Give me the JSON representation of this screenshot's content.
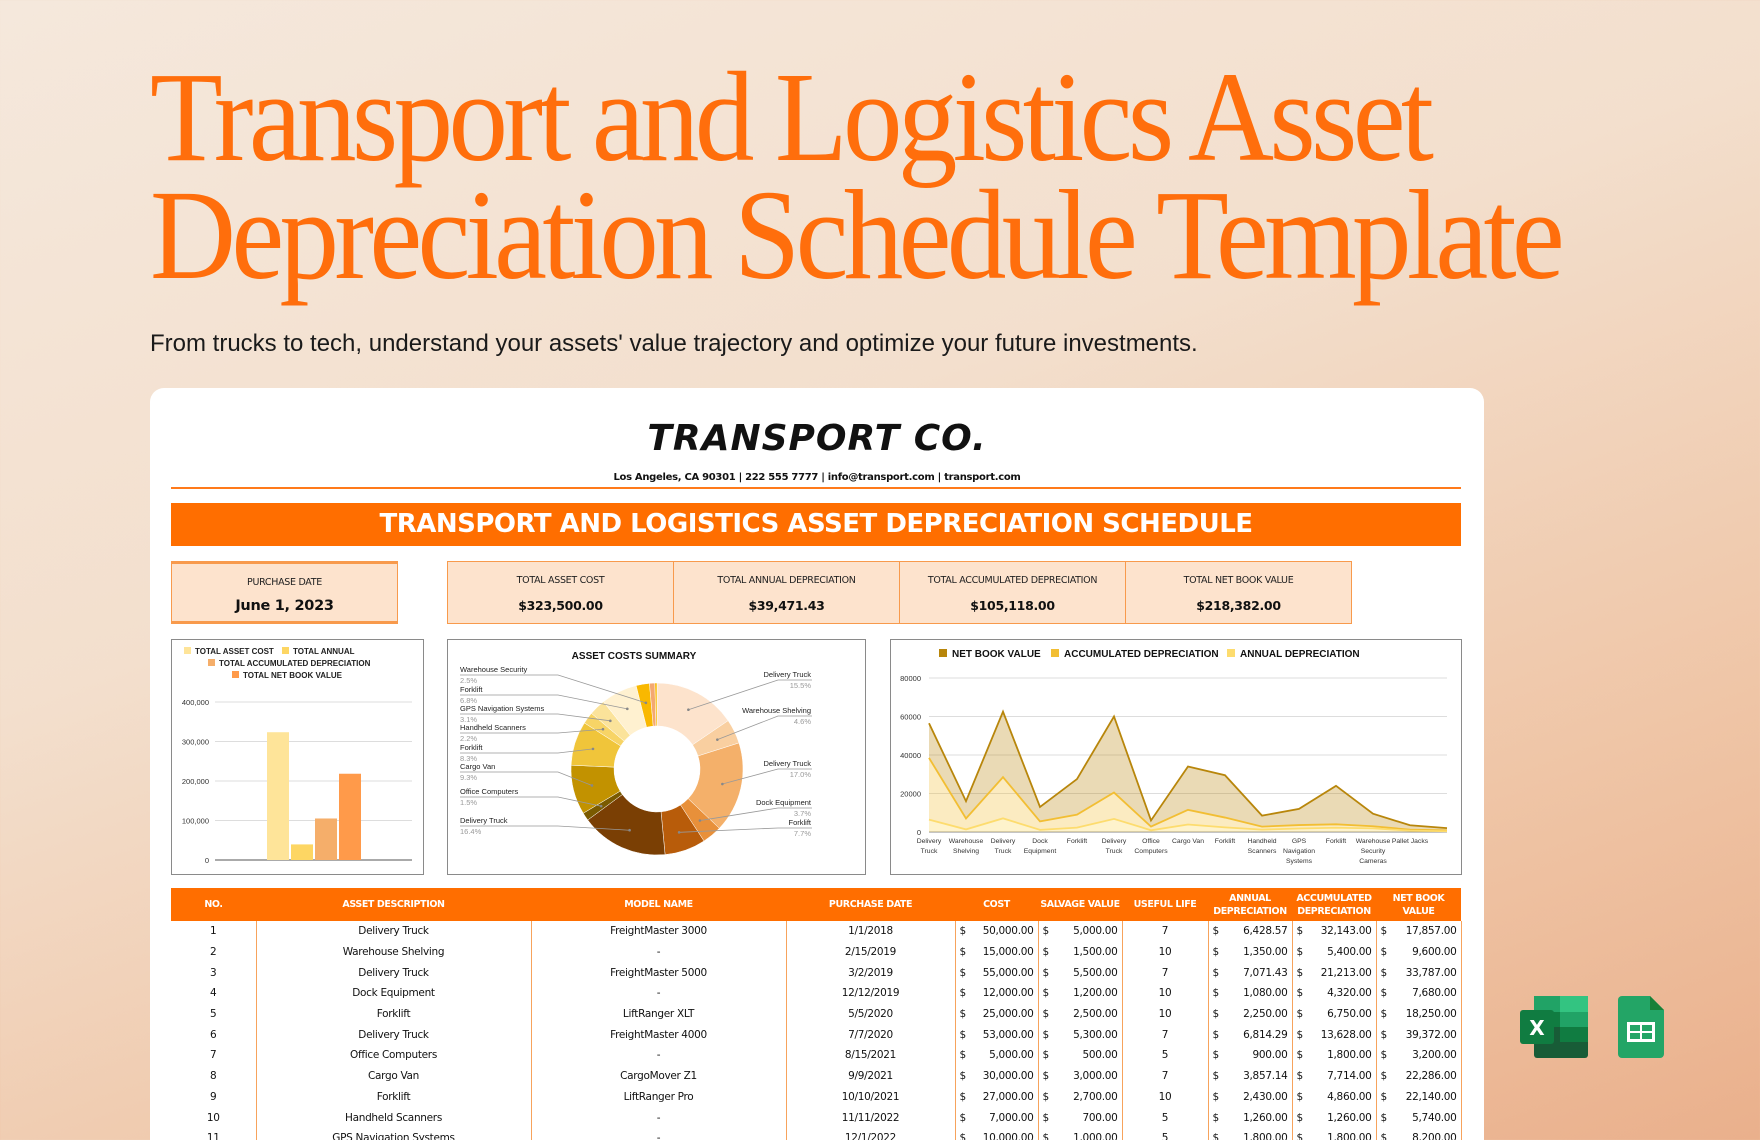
{
  "hero": {
    "title_line1": "Transport and Logistics Asset",
    "title_line2": "Depreciation Schedule Template",
    "subtitle": "From trucks to tech, understand your assets' value trajectory and optimize your future investments."
  },
  "document": {
    "company": "TRANSPORT CO.",
    "contact": "Los Angeles, CA 90301 | 222 555 7777 | info@transport.com | transport.com",
    "banner": "TRANSPORT AND LOGISTICS ASSET DEPRECIATION SCHEDULE",
    "kpis": [
      {
        "label": "PURCHASE DATE",
        "value": "June 1, 2023"
      },
      {
        "label": "TOTAL ASSET COST",
        "value": "$323,500.00"
      },
      {
        "label": "TOTAL ANNUAL DEPRECIATION",
        "value": "$39,471.43"
      },
      {
        "label": "TOTAL ACCUMULATED DEPRECIATION",
        "value": "$105,118.00"
      },
      {
        "label": "TOTAL NET BOOK VALUE",
        "value": "$218,382.00"
      }
    ],
    "table": {
      "headers": [
        "NO.",
        "ASSET DESCRIPTION",
        "MODEL NAME",
        "PURCHASE DATE",
        "COST",
        "SALVAGE VALUE",
        "USEFUL LIFE",
        "ANNUAL DEPRECIATION",
        "ACCUMULATED DEPRECIATION",
        "NET BOOK VALUE"
      ],
      "currency_symbol": "$",
      "rows": [
        [
          "1",
          "Delivery Truck",
          "FreightMaster 3000",
          "1/1/2018",
          "50,000.00",
          "5,000.00",
          "7",
          "6,428.57",
          "32,143.00",
          "17,857.00"
        ],
        [
          "2",
          "Warehouse Shelving",
          "-",
          "2/15/2019",
          "15,000.00",
          "1,500.00",
          "10",
          "1,350.00",
          "5,400.00",
          "9,600.00"
        ],
        [
          "3",
          "Delivery Truck",
          "FreightMaster 5000",
          "3/2/2019",
          "55,000.00",
          "5,500.00",
          "7",
          "7,071.43",
          "21,213.00",
          "33,787.00"
        ],
        [
          "4",
          "Dock Equipment",
          "-",
          "12/12/2019",
          "12,000.00",
          "1,200.00",
          "10",
          "1,080.00",
          "4,320.00",
          "7,680.00"
        ],
        [
          "5",
          "Forklift",
          "LiftRanger XLT",
          "5/5/2020",
          "25,000.00",
          "2,500.00",
          "10",
          "2,250.00",
          "6,750.00",
          "18,250.00"
        ],
        [
          "6",
          "Delivery Truck",
          "FreightMaster 4000",
          "7/7/2020",
          "53,000.00",
          "5,300.00",
          "7",
          "6,814.29",
          "13,628.00",
          "39,372.00"
        ],
        [
          "7",
          "Office Computers",
          "-",
          "8/15/2021",
          "5,000.00",
          "500.00",
          "5",
          "900.00",
          "1,800.00",
          "3,200.00"
        ],
        [
          "8",
          "Cargo Van",
          "CargoMover Z1",
          "9/9/2021",
          "30,000.00",
          "3,000.00",
          "7",
          "3,857.14",
          "7,714.00",
          "22,286.00"
        ],
        [
          "9",
          "Forklift",
          "LiftRanger Pro",
          "10/10/2021",
          "27,000.00",
          "2,700.00",
          "10",
          "2,430.00",
          "4,860.00",
          "22,140.00"
        ],
        [
          "10",
          "Handheld Scanners",
          "-",
          "11/11/2022",
          "7,000.00",
          "700.00",
          "5",
          "1,260.00",
          "1,260.00",
          "5,740.00"
        ],
        [
          "11",
          "GPS Navigation Systems",
          "-",
          "12/1/2022",
          "10,000.00",
          "1,000.00",
          "5",
          "1,800.00",
          "1,800.00",
          "8,200.00"
        ]
      ]
    }
  },
  "colors": {
    "accent": "#ff6e00",
    "kpi_fill": "#fde3cd",
    "kpi_border": "#f89a4c"
  },
  "app_icons": [
    {
      "name": "excel-icon",
      "label": "X"
    },
    {
      "name": "google-sheets-icon",
      "label": ""
    }
  ],
  "chart_data": [
    {
      "type": "bar",
      "title": "",
      "legend": [
        "TOTAL ASSET COST",
        "TOTAL ANNUAL",
        "TOTAL ACCUMULATED DEPRECIATION",
        "TOTAL NET BOOK VALUE"
      ],
      "legend_position": "top",
      "categories": [
        "TOTAL ASSET COST",
        "TOTAL ANNUAL",
        "TOTAL ACCUMULATED DEPRECIATION",
        "TOTAL NET BOOK VALUE"
      ],
      "values": [
        323500,
        39471.43,
        105118,
        218382
      ],
      "colors": [
        "#fee499",
        "#fdd663",
        "#f5ae6a",
        "#ff9a4a"
      ],
      "yticks": [
        "0",
        "100,000",
        "200,000",
        "300,000",
        "400,000"
      ],
      "ylim": [
        0,
        400000
      ],
      "grid": true
    },
    {
      "type": "pie",
      "title": "ASSET COSTS SUMMARY",
      "donut": true,
      "slices": [
        {
          "label": "Delivery Truck",
          "pct": 15.5,
          "color": "#fde3cc"
        },
        {
          "label": "Warehouse Shelving",
          "pct": 4.6,
          "color": "#f9cfa0"
        },
        {
          "label": "Delivery Truck",
          "pct": 17.0,
          "color": "#f4b06a"
        },
        {
          "label": "Dock Equipment",
          "pct": 3.7,
          "color": "#e8903a"
        },
        {
          "label": "Forklift",
          "pct": 7.7,
          "color": "#b85c0a"
        },
        {
          "label": "Delivery Truck",
          "pct": 16.4,
          "color": "#7a3f04"
        },
        {
          "label": "Office Computers",
          "pct": 1.5,
          "color": "#7a5a00"
        },
        {
          "label": "Cargo Van",
          "pct": 9.3,
          "color": "#c29200"
        },
        {
          "label": "Forklift",
          "pct": 8.3,
          "color": "#f0c53a"
        },
        {
          "label": "Handheld Scanners",
          "pct": 2.2,
          "color": "#f7d466"
        },
        {
          "label": "GPS Navigation Systems",
          "pct": 3.1,
          "color": "#fbe39a"
        },
        {
          "label": "Forklift",
          "pct": 6.8,
          "color": "#fff1d0"
        },
        {
          "label": "Warehouse Security",
          "pct": 2.5,
          "color": "#f9b800"
        },
        {
          "label": "Pallet Jacks",
          "pct": 1.0,
          "color": "#f4a870"
        },
        {
          "label": "",
          "pct": 0.4,
          "color": "#f9b800"
        }
      ]
    },
    {
      "type": "area",
      "stacked": true,
      "legend": [
        "NET BOOK VALUE",
        "ACCUMULATED DEPRECIATION",
        "ANNUAL DEPRECIATION"
      ],
      "legend_position": "top",
      "categories": [
        "Delivery Truck",
        "Warehouse Shelving",
        "Delivery Truck",
        "Dock Equipment",
        "Forklift",
        "Delivery Truck",
        "Office Computers",
        "Cargo Van",
        "Forklift",
        "Handheld Scanners",
        "GPS Navigation Systems",
        "Forklift",
        "Warehouse Security Cameras",
        "Pallet Jacks"
      ],
      "series": [
        {
          "name": "ANNUAL DEPRECIATION",
          "color": "#fddc6e",
          "values": [
            6400,
            1350,
            7100,
            1100,
            2250,
            6800,
            900,
            3900,
            2400,
            1250,
            1800,
            2200,
            1900,
            700
          ]
        },
        {
          "name": "ACCUMULATED DEPRECIATION",
          "color": "#f2be33",
          "values": [
            32100,
            5650,
            21400,
            4400,
            6750,
            13700,
            1900,
            7600,
            5100,
            1550,
            1800,
            1800,
            1100,
            500
          ]
        },
        {
          "name": "NET BOOK VALUE",
          "color": "#b8860b",
          "values": [
            18000,
            9000,
            34000,
            7500,
            18500,
            39500,
            3200,
            22500,
            22000,
            5700,
            8400,
            20000,
            6500,
            2300
          ]
        }
      ],
      "stack_totals": [
        56500,
        16000,
        62500,
        13000,
        27500,
        60000,
        6000,
        34000,
        29500,
        8500,
        12000,
        24000,
        9500,
        3500
      ],
      "yticks": [
        "0",
        "20000",
        "40000",
        "60000",
        "80000"
      ],
      "ylim": [
        0,
        80000
      ],
      "grid": true
    }
  ]
}
